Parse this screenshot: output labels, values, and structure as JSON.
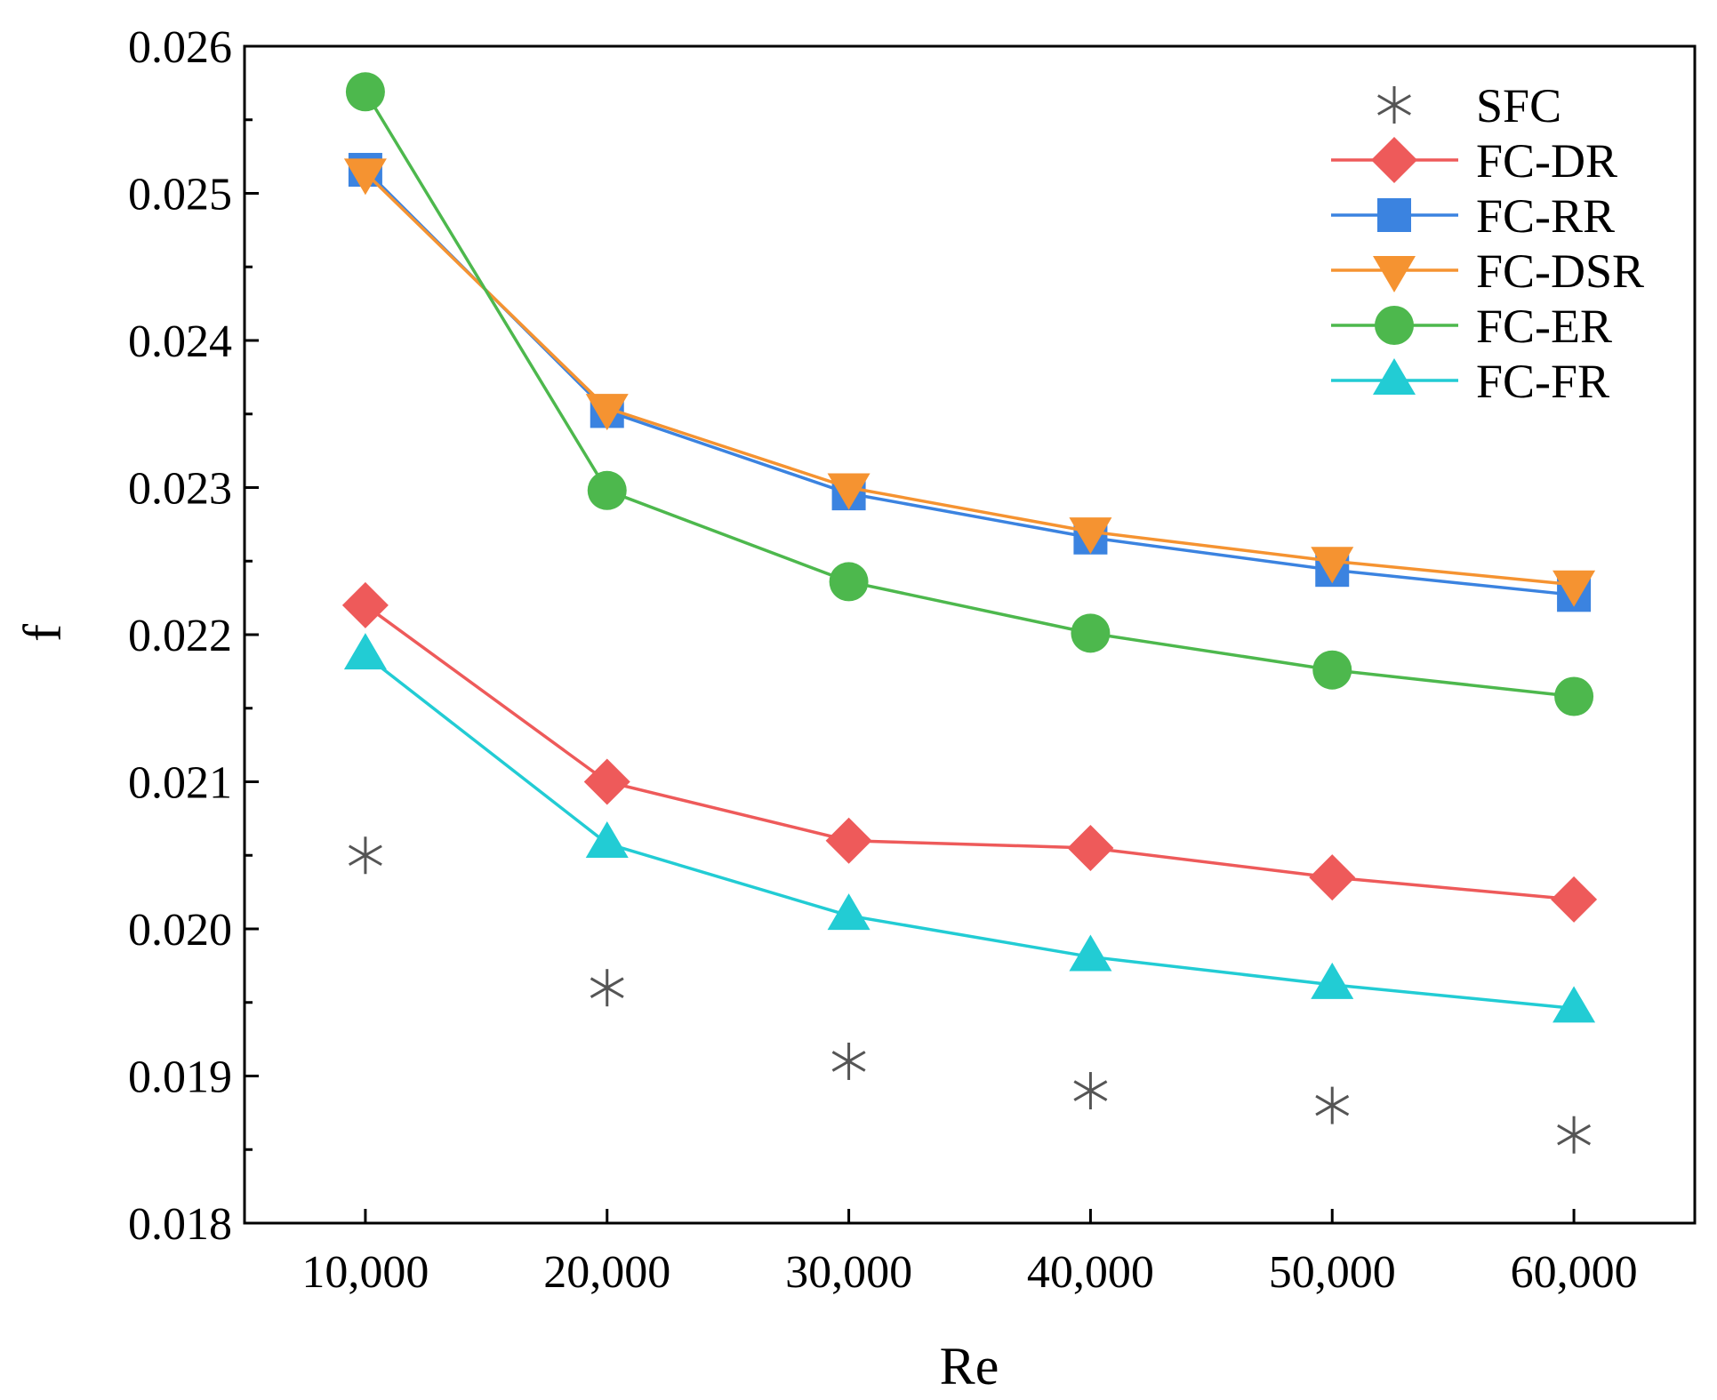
{
  "chart_data": {
    "type": "line",
    "title": "",
    "xlabel": "Re",
    "ylabel": "f",
    "x": [
      10000,
      20000,
      30000,
      40000,
      50000,
      60000
    ],
    "x_tick_labels": [
      "10,000",
      "20,000",
      "30,000",
      "40,000",
      "50,000",
      "60,000"
    ],
    "xlim": [
      5000,
      65000
    ],
    "ylim": [
      0.018,
      0.026
    ],
    "y_ticks": [
      0.018,
      0.019,
      0.02,
      0.021,
      0.022,
      0.023,
      0.024,
      0.025,
      0.026
    ],
    "y_tick_labels": [
      "0.018",
      "0.019",
      "0.020",
      "0.021",
      "0.022",
      "0.023",
      "0.024",
      "0.025",
      "0.026"
    ],
    "grid": false,
    "legend_position": "top-right",
    "series": [
      {
        "name": "SFC",
        "marker": "asterisk",
        "line": false,
        "color": "#555555",
        "values": [
          0.0205,
          0.0196,
          0.0191,
          0.0189,
          0.0188,
          0.0186
        ]
      },
      {
        "name": "FC-DR",
        "marker": "diamond",
        "line": true,
        "color": "#EE5A5A",
        "values": [
          0.0222,
          0.021,
          0.0206,
          0.02055,
          0.02035,
          0.0202
        ]
      },
      {
        "name": "FC-RR",
        "marker": "square",
        "line": true,
        "color": "#3B83E0",
        "values": [
          0.02516,
          0.02352,
          0.02296,
          0.02266,
          0.02244,
          0.02227
        ]
      },
      {
        "name": "FC-DSR",
        "marker": "triangle-down",
        "line": true,
        "color": "#F59331",
        "values": [
          0.02514,
          0.02354,
          0.023,
          0.0227,
          0.0225,
          0.02234
        ]
      },
      {
        "name": "FC-ER",
        "marker": "circle",
        "line": true,
        "color": "#4DB84D",
        "values": [
          0.02569,
          0.02298,
          0.02236,
          0.02201,
          0.02176,
          0.02158
        ]
      },
      {
        "name": "FC-FR",
        "marker": "triangle-up",
        "line": true,
        "color": "#22CCD4",
        "values": [
          0.02186,
          0.02058,
          0.02009,
          0.01981,
          0.01962,
          0.01946
        ]
      }
    ]
  }
}
